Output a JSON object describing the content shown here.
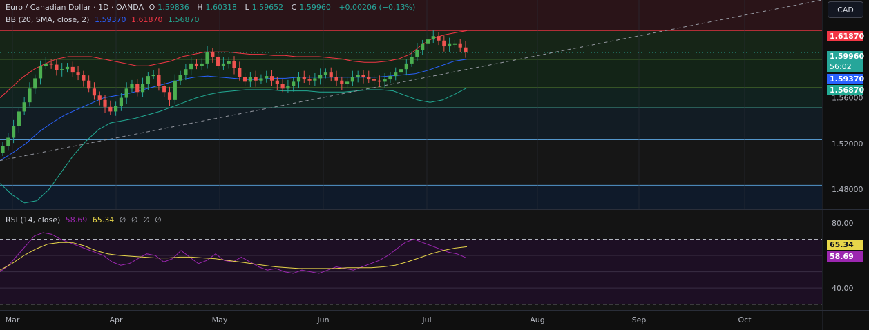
{
  "header": {
    "symbol": "Euro / Canadian Dollar · 1D · OANDA",
    "open_label": "O",
    "open": "1.59836",
    "high_label": "H",
    "high": "1.60318",
    "low_label": "L",
    "low": "1.59652",
    "close_label": "C",
    "close": "1.59960",
    "change": "+0.00206 (+0.13%)"
  },
  "bb_legend": {
    "name": "BB (20, SMA, close, 2)",
    "basis": "1.59370",
    "upper": "1.61870",
    "lower": "1.56870"
  },
  "rsi_legend": {
    "name": "RSI (14, close)",
    "rsi": "58.69",
    "rsi_ma": "65.34",
    "extras": [
      "∅",
      "∅",
      "∅",
      "∅"
    ]
  },
  "currency": "CAD",
  "price_tags": {
    "upper": "1.61870",
    "last": "1.59960",
    "countdown": "56:02",
    "basis": "1.59370",
    "lower": "1.56870"
  },
  "rsi_tags": {
    "ma": "65.34",
    "rsi": "58.69"
  },
  "colors": {
    "up": "#26a69a",
    "down": "#ef5350",
    "bb_upper": "#f23645",
    "bb_basis": "#2962ff",
    "bb_lower": "#22ab94",
    "rsi": "#9c27b0",
    "rsi_ma": "#e8d64a"
  },
  "chart_data": [
    {
      "type": "candlestick",
      "title": "Euro / Canadian Dollar · 1D · OANDA",
      "x_ticks": [
        "Mar",
        "Apr",
        "May",
        "Jun",
        "Jul",
        "Aug",
        "Sep",
        "Oct"
      ],
      "y_ticks": [
        1.48,
        1.52,
        1.56
      ],
      "y_tick_labels": [
        "1.48000",
        "1.52000",
        "1.56000"
      ],
      "ylim": [
        1.4625,
        1.6455
      ],
      "horizontal_levels": [
        1.6187,
        1.5937,
        1.5687,
        1.5513,
        1.5232,
        1.4834
      ],
      "ohlc_series": [
        1.518,
        1.525,
        1.535,
        1.548,
        1.556,
        1.568,
        1.577,
        1.588,
        1.59,
        1.589,
        1.584,
        1.585,
        1.587,
        1.582,
        1.58,
        1.575,
        1.568,
        1.562,
        1.558,
        1.552,
        1.548,
        1.553,
        1.56,
        1.568,
        1.572,
        1.565,
        1.572,
        1.579,
        1.58,
        1.57,
        1.565,
        1.558,
        1.575,
        1.58,
        1.585,
        1.59,
        1.588,
        1.59,
        1.6,
        1.596,
        1.588,
        1.59,
        1.592,
        1.586,
        1.578,
        1.574,
        1.578,
        1.575,
        1.577,
        1.579,
        1.575,
        1.572,
        1.568,
        1.57,
        1.574,
        1.578,
        1.576,
        1.575,
        1.577,
        1.58,
        1.582,
        1.578,
        1.575,
        1.572,
        1.574,
        1.578,
        1.58,
        1.578,
        1.576,
        1.575,
        1.574,
        1.576,
        1.579,
        1.582,
        1.585,
        1.59,
        1.596,
        1.602,
        1.607,
        1.611,
        1.614,
        1.61,
        1.605,
        1.607,
        1.607,
        1.604,
        1.5996
      ],
      "bb_upper": [
        1.56,
        1.569,
        1.578,
        1.585,
        1.59,
        1.594,
        1.596,
        1.596,
        1.596,
        1.594,
        1.592,
        1.59,
        1.588,
        1.588,
        1.59,
        1.592,
        1.596,
        1.598,
        1.6,
        1.6,
        1.6,
        1.599,
        1.598,
        1.598,
        1.597,
        1.597,
        1.596,
        1.596,
        1.596,
        1.595,
        1.594,
        1.592,
        1.591,
        1.591,
        1.592,
        1.594,
        1.598,
        1.606,
        1.612,
        1.615,
        1.617,
        1.6187
      ],
      "bb_basis": [
        1.505,
        1.512,
        1.52,
        1.53,
        1.538,
        1.545,
        1.55,
        1.555,
        1.56,
        1.562,
        1.564,
        1.567,
        1.57,
        1.573,
        1.576,
        1.578,
        1.579,
        1.578,
        1.577,
        1.576,
        1.576,
        1.577,
        1.577,
        1.578,
        1.578,
        1.578,
        1.578,
        1.578,
        1.578,
        1.578,
        1.579,
        1.58,
        1.581,
        1.584,
        1.588,
        1.592,
        1.5937
      ],
      "bb_lower": [
        1.485,
        1.475,
        1.468,
        1.47,
        1.48,
        1.495,
        1.51,
        1.522,
        1.532,
        1.538,
        1.54,
        1.542,
        1.545,
        1.548,
        1.552,
        1.556,
        1.56,
        1.563,
        1.565,
        1.566,
        1.567,
        1.567,
        1.567,
        1.566,
        1.566,
        1.566,
        1.565,
        1.565,
        1.565,
        1.566,
        1.567,
        1.567,
        1.566,
        1.562,
        1.558,
        1.556,
        1.558,
        1.563,
        1.5687
      ],
      "last_price": 1.5996
    },
    {
      "type": "line",
      "title": "RSI (14, close)",
      "y_ticks": [
        40,
        80
      ],
      "y_tick_labels": [
        "40.00",
        "80.00"
      ],
      "ylim": [
        26.5,
        88
      ],
      "levels": [
        70,
        60,
        50,
        40,
        30
      ],
      "series": [
        {
          "name": "RSI",
          "values": [
            50,
            54,
            60,
            66,
            72,
            74,
            73,
            70,
            68,
            66,
            64,
            62,
            60,
            56,
            54,
            55,
            58,
            61,
            60,
            56,
            58,
            63,
            59,
            55,
            57,
            61,
            57,
            56,
            59,
            56,
            53,
            51,
            52,
            50,
            49,
            51,
            50,
            49,
            51,
            53,
            52,
            51,
            53,
            55,
            57,
            60,
            64,
            68,
            70,
            68,
            66,
            64,
            62,
            61,
            58.69
          ]
        },
        {
          "name": "RSI-based MA",
          "values": [
            51,
            55,
            60,
            64,
            67,
            68,
            68,
            66,
            63,
            61,
            60,
            59.5,
            59,
            58.5,
            58.5,
            59,
            59,
            58.5,
            58,
            57,
            56,
            55,
            54,
            53,
            52.5,
            52,
            52,
            52,
            52,
            52.5,
            52.5,
            52.5,
            53,
            54,
            56,
            58.5,
            61,
            63,
            64.5,
            65.34
          ]
        }
      ]
    }
  ]
}
